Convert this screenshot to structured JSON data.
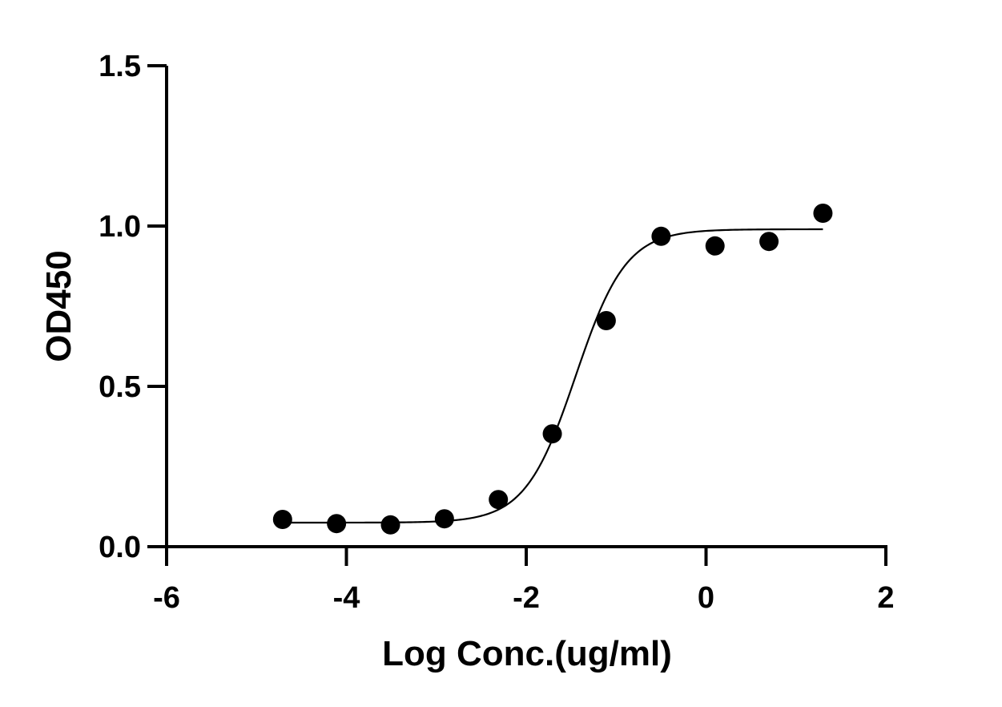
{
  "chart_data": {
    "type": "scatter",
    "xlabel": "Log Conc.(ug/ml)",
    "ylabel": "OD450",
    "xlim": [
      -6,
      2
    ],
    "ylim": [
      0,
      1.5
    ],
    "x_ticks": [
      -6,
      -4,
      -2,
      0,
      2
    ],
    "x_tick_labels": [
      "-6",
      "-4",
      "-2",
      "0",
      "2"
    ],
    "y_ticks": [
      0,
      0.5,
      1.0,
      1.5
    ],
    "y_tick_labels": [
      "0.0",
      "0.5",
      "1.0",
      "1.5"
    ],
    "grid": false,
    "series": [
      {
        "x": [
          -4.71,
          -4.11,
          -3.51,
          -2.91,
          -2.31,
          -1.71,
          -1.11,
          -0.5,
          0.1,
          0.7,
          1.3
        ],
        "y": [
          0.085,
          0.072,
          0.068,
          0.087,
          0.147,
          0.352,
          0.705,
          0.968,
          0.938,
          0.952,
          1.04
        ],
        "marker": "circle",
        "color": "#000000"
      }
    ],
    "fit_curve": {
      "model": "4PL",
      "bottom": 0.075,
      "top": 0.99,
      "log_ec50": -1.45,
      "hill_slope": 1.55,
      "x_range": [
        -4.71,
        1.3
      ],
      "color": "#000000"
    }
  }
}
